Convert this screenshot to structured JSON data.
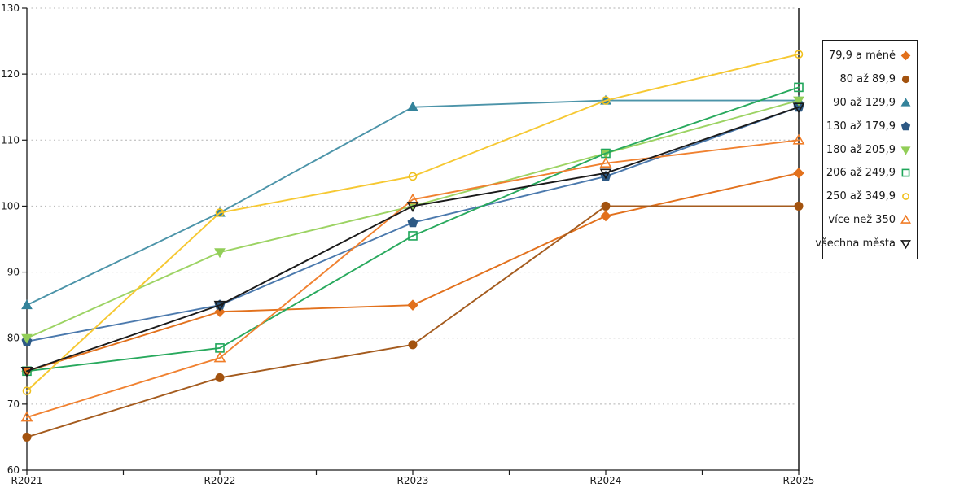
{
  "chart_data": {
    "type": "line",
    "title": "",
    "xlabel": "",
    "ylabel": "",
    "categories": [
      "R2021",
      "R2022",
      "R2023",
      "R2024",
      "R2025"
    ],
    "ylim": [
      60,
      130
    ],
    "yticks": [
      60,
      70,
      80,
      90,
      100,
      110,
      120,
      130
    ],
    "grid": "horizontal dotted",
    "gridline_color": "#b3b3b3",
    "axis_color": "#1a1a1a",
    "legend_position": "right outside, vertical box",
    "series": [
      {
        "name": "79,9 a méně",
        "marker": "diamond",
        "filled": true,
        "color": "#E2711D",
        "line_color": "#E2711D",
        "values": [
          75,
          84,
          85,
          98.5,
          105
        ]
      },
      {
        "name": "80 až 89,9",
        "marker": "circle",
        "filled": true,
        "color": "#A3530F",
        "line_color": "#A45B1E",
        "values": [
          65,
          74,
          79,
          100,
          100
        ]
      },
      {
        "name": "90 až 129,9",
        "marker": "triangle-up",
        "filled": true,
        "color": "#34839B",
        "line_color": "#4C94A9",
        "values": [
          85,
          99,
          115,
          116,
          116
        ]
      },
      {
        "name": "130 až 179,9",
        "marker": "pentagon",
        "filled": true,
        "color": "#2D5984",
        "line_color": "#4B79AD",
        "values": [
          79.5,
          85,
          97.5,
          104.5,
          115
        ]
      },
      {
        "name": "180 až 205,9",
        "marker": "triangle-down",
        "filled": true,
        "color": "#92CE58",
        "line_color": "#9CD363",
        "values": [
          80,
          93,
          100,
          108,
          116
        ]
      },
      {
        "name": "206 až 249,9",
        "marker": "square",
        "filled": false,
        "color": "#1FA65A",
        "line_color": "#28A95D",
        "values": [
          75,
          78.5,
          95.5,
          108,
          118
        ]
      },
      {
        "name": "250 až 349,9",
        "marker": "circle",
        "filled": false,
        "color": "#F0C01E",
        "line_color": "#F6C832",
        "values": [
          72,
          99,
          104.5,
          116,
          123
        ]
      },
      {
        "name": "více než 350",
        "marker": "triangle-up",
        "filled": false,
        "color": "#F07D28",
        "line_color": "#F08130",
        "values": [
          68,
          77,
          101,
          106.5,
          110
        ]
      },
      {
        "name": "všechna města",
        "marker": "triangle-down",
        "filled": false,
        "color": "#1A1A1A",
        "line_color": "#1A1A1A",
        "values": [
          75,
          85,
          100,
          105,
          115
        ]
      }
    ]
  }
}
